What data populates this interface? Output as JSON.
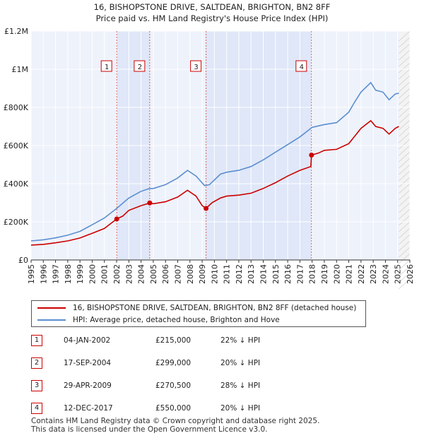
{
  "chart_data": {
    "type": "line",
    "title": "16, BISHOPSTONE DRIVE, SALTDEAN, BRIGHTON, BN2 8FF",
    "subtitle": "Price paid vs. HM Land Registry's House Price Index (HPI)",
    "xlim": [
      1995,
      2026
    ],
    "ylim": [
      0,
      1200000
    ],
    "x_ticks": [
      "1995",
      "1996",
      "1997",
      "1998",
      "1999",
      "2000",
      "2001",
      "2002",
      "2003",
      "2004",
      "2005",
      "2006",
      "2007",
      "2008",
      "2009",
      "2010",
      "2011",
      "2012",
      "2013",
      "2014",
      "2015",
      "2016",
      "2017",
      "2018",
      "2019",
      "2020",
      "2021",
      "2022",
      "2023",
      "2024",
      "2025",
      "2026"
    ],
    "y_ticks": [
      {
        "value": 0,
        "label": "£0"
      },
      {
        "value": 200000,
        "label": "£200K"
      },
      {
        "value": 400000,
        "label": "£400K"
      },
      {
        "value": 600000,
        "label": "£600K"
      },
      {
        "value": 800000,
        "label": "£800K"
      },
      {
        "value": 1000000,
        "label": "£1M"
      },
      {
        "value": 1200000,
        "label": "£1.2M"
      }
    ],
    "grid": true,
    "series": [
      {
        "name": "16, BISHOPSTONE DRIVE, SALTDEAN, BRIGHTON, BN2 8FF (detached house)",
        "color": "#cc0000",
        "x": [
          1995,
          1996,
          1997,
          1998,
          1999,
          2000,
          2001,
          2002.01,
          2002.5,
          2003,
          2004,
          2004.71,
          2005,
          2006,
          2007,
          2007.8,
          2008.5,
          2009.0,
          2009.32,
          2009.8,
          2010.5,
          2011,
          2012,
          2013,
          2014,
          2015,
          2016,
          2017,
          2017.9,
          2017.95,
          2018.5,
          2019,
          2020,
          2021,
          2021.5,
          2022,
          2022.8,
          2023.2,
          2023.8,
          2024.3,
          2024.8,
          2025.1
        ],
        "y": [
          78000,
          82000,
          90000,
          100000,
          115000,
          140000,
          165000,
          215000,
          230000,
          260000,
          285000,
          299000,
          295000,
          305000,
          330000,
          365000,
          335000,
          285000,
          270500,
          300000,
          325000,
          335000,
          340000,
          350000,
          375000,
          405000,
          440000,
          470000,
          490000,
          550000,
          560000,
          575000,
          580000,
          610000,
          650000,
          690000,
          730000,
          700000,
          690000,
          660000,
          690000,
          700000
        ]
      },
      {
        "name": "HPI: Average price, detached house, Brighton and Hove",
        "color": "#5b8fd0",
        "x": [
          1995,
          1996,
          1997,
          1998,
          1999,
          2000,
          2001,
          2002,
          2003,
          2004,
          2004.7,
          2005,
          2006,
          2007,
          2007.8,
          2008.5,
          2009.2,
          2009.6,
          2010.5,
          2011,
          2012,
          2013,
          2014,
          2015,
          2016,
          2017,
          2018,
          2019,
          2020,
          2021,
          2021.5,
          2022,
          2022.8,
          2023.2,
          2023.8,
          2024.3,
          2024.8,
          2025.1
        ],
        "y": [
          100000,
          106000,
          116000,
          130000,
          150000,
          185000,
          220000,
          270000,
          325000,
          360000,
          375000,
          375000,
          395000,
          430000,
          470000,
          440000,
          390000,
          395000,
          450000,
          460000,
          470000,
          490000,
          525000,
          565000,
          605000,
          645000,
          695000,
          710000,
          720000,
          775000,
          830000,
          880000,
          930000,
          890000,
          880000,
          840000,
          870000,
          875000
        ]
      }
    ],
    "transactions": [
      {
        "n": "1",
        "x": 2002.01,
        "y": 215000,
        "date": "04-JAN-2002",
        "price": "£215,000",
        "hpi": "22% ↓ HPI"
      },
      {
        "n": "2",
        "x": 2004.71,
        "y": 299000,
        "date": "17-SEP-2004",
        "price": "£299,000",
        "hpi": "20% ↓ HPI"
      },
      {
        "n": "3",
        "x": 2009.32,
        "y": 270500,
        "date": "29-APR-2009",
        "price": "£270,500",
        "hpi": "28% ↓ HPI"
      },
      {
        "n": "4",
        "x": 2017.95,
        "y": 550000,
        "date": "12-DEC-2017",
        "price": "£550,000",
        "hpi": "20% ↓ HPI"
      }
    ],
    "shaded_periods": [
      [
        2002.01,
        2004.71
      ],
      [
        2009.32,
        2017.95
      ]
    ],
    "forecast_start": 2025.1
  },
  "legend": {
    "property_label": "16, BISHOPSTONE DRIVE, SALTDEAN, BRIGHTON, BN2 8FF (detached house)",
    "hpi_label": "HPI: Average price, detached house, Brighton and Hove"
  },
  "footer": {
    "line1": "Contains HM Land Registry data © Crown copyright and database right 2025.",
    "line2": "This data is licensed under the Open Government Licence v3.0."
  },
  "colors": {
    "property": "#cc0000",
    "hpi": "#5b8fd0",
    "shade": "#dfe7f8",
    "plot_bg": "#eef2fb"
  }
}
